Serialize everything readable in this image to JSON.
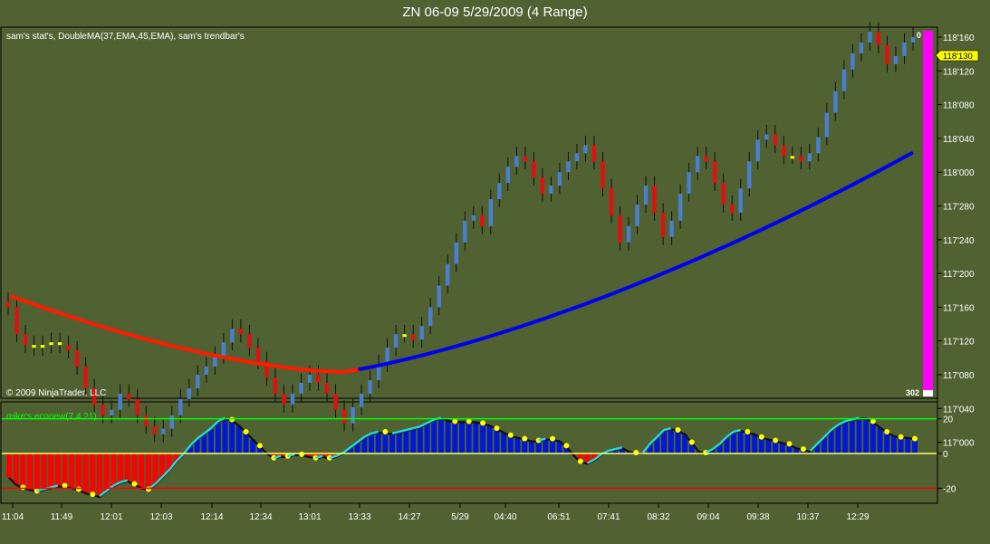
{
  "window": {
    "title": "ZN 06-09  5/29/2009 (4 Range)"
  },
  "price_panel": {
    "indicators_label": "sam's stat's, DoubleMA(37,EMA,45,EMA), sam's trendbar's",
    "copyright": "© 2009 NinjaTrader, LLC",
    "top_marker": "0",
    "bottom_marker": "302",
    "last_price_label": "118'130",
    "volume_bar_color": "#ff00ff"
  },
  "oscillator_panel": {
    "label": "mike's econew(7,4,21)",
    "levels": [
      20,
      0,
      -20
    ],
    "level_colors": {
      "upper": "#00ff00",
      "zero": "#ffff66",
      "lower": "#ff0000"
    }
  },
  "colors": {
    "background": "#516232",
    "up_bar": "#4a7fd0",
    "down_bar": "#e01010",
    "neutral_bar": "#ffff00",
    "ma_fast_down": "#ff1a00",
    "ma_up": "#0000ee",
    "hist_pos": "#0018d0",
    "hist_neg": "#ff0000"
  },
  "chart_data": [
    {
      "type": "ohlc",
      "title": "ZN 06-09  5/29/2009 (4 Range)",
      "y_axis_ticks": [
        "118'160",
        "118'120",
        "118'080",
        "118'040",
        "118'000",
        "117'280",
        "117'240",
        "117'200",
        "117'160",
        "117'120",
        "117'080",
        "117'040",
        "117'000"
      ],
      "ylim": [
        "116'290",
        "118'170"
      ],
      "x_axis_ticks": [
        "11:04",
        "11:49",
        "12:01",
        "12:03",
        "12:14",
        "12:34",
        "13:01",
        "13:33",
        "14:27",
        "5/29",
        "04:40",
        "06:51",
        "07:41",
        "08:32",
        "09:04",
        "09:38",
        "10:37",
        "12:29"
      ],
      "close_series": [
        117.5,
        117.4,
        117.36,
        117.35,
        117.36,
        117.37,
        117.36,
        117.34,
        117.28,
        117.2,
        117.14,
        117.1,
        117.12,
        117.18,
        117.16,
        117.1,
        117.06,
        117.03,
        117.05,
        117.1,
        117.16,
        117.2,
        117.25,
        117.28,
        117.32,
        117.37,
        117.42,
        117.4,
        117.35,
        117.3,
        117.24,
        117.18,
        117.14,
        117.18,
        117.22,
        117.25,
        117.22,
        117.18,
        117.12,
        117.07,
        117.13,
        117.18,
        117.23,
        117.29,
        117.35,
        117.4,
        117.4,
        117.38,
        117.43,
        117.5,
        117.58,
        117.66,
        117.74,
        117.82,
        117.84,
        117.8,
        117.9,
        117.96,
        118.02,
        118.06,
        118.04,
        117.98,
        117.92,
        117.95,
        118.0,
        118.04,
        118.07,
        118.1,
        118.04,
        117.94,
        117.84,
        117.74,
        117.8,
        117.88,
        117.95,
        117.85,
        117.76,
        117.82,
        117.92,
        118.0,
        118.06,
        118.04,
        117.96,
        117.88,
        117.85,
        117.94,
        118.04,
        118.12,
        118.14,
        118.1,
        118.06,
        118.06,
        118.04,
        118.07,
        118.13,
        118.22,
        118.3,
        118.38,
        118.44,
        118.48,
        118.52,
        118.47,
        118.4,
        118.43,
        118.48,
        118.5
      ],
      "close_note": "price in decimal points (ticks 1/32 shown as 'xxx on axis)",
      "ma_series": [
        {
          "name": "DoubleMA(37,EMA,45,EMA)",
          "start": 117.54,
          "mid": 117.26,
          "end": 118.07
        }
      ]
    },
    {
      "type": "bar",
      "title": "mike's econew(7,4,21)",
      "ylim": [
        -25,
        25
      ],
      "y_ticks": [
        20,
        0,
        -20
      ],
      "values": [
        -14,
        -18,
        -20,
        -21,
        -22,
        -21,
        -20,
        -19,
        -19,
        -20,
        -21,
        -23,
        -24,
        -25,
        -22,
        -19,
        -17,
        -16,
        -18,
        -20,
        -21,
        -18,
        -14,
        -10,
        -5,
        -1,
        4,
        8,
        11,
        14,
        18,
        20,
        19,
        16,
        12,
        8,
        4,
        0,
        -3,
        -2,
        -2,
        -1,
        -1,
        -2,
        -3,
        -2,
        -3,
        -2,
        0,
        3,
        6,
        9,
        11,
        12,
        12,
        11,
        12,
        13,
        14,
        15,
        17,
        19,
        20,
        19,
        18,
        18,
        18,
        18,
        17,
        16,
        14,
        12,
        10,
        9,
        8,
        7,
        7,
        8,
        8,
        7,
        4,
        -1,
        -5,
        -6,
        -4,
        -1,
        1,
        2,
        3,
        1,
        0,
        0,
        5,
        9,
        13,
        14,
        13,
        11,
        6,
        1,
        0,
        2,
        5,
        9,
        12,
        13,
        12,
        11,
        9,
        8,
        7,
        6,
        5,
        3,
        2,
        1,
        5,
        9,
        13,
        16,
        18,
        19,
        20,
        20,
        18,
        15,
        12,
        10,
        9,
        9,
        8
      ]
    }
  ]
}
